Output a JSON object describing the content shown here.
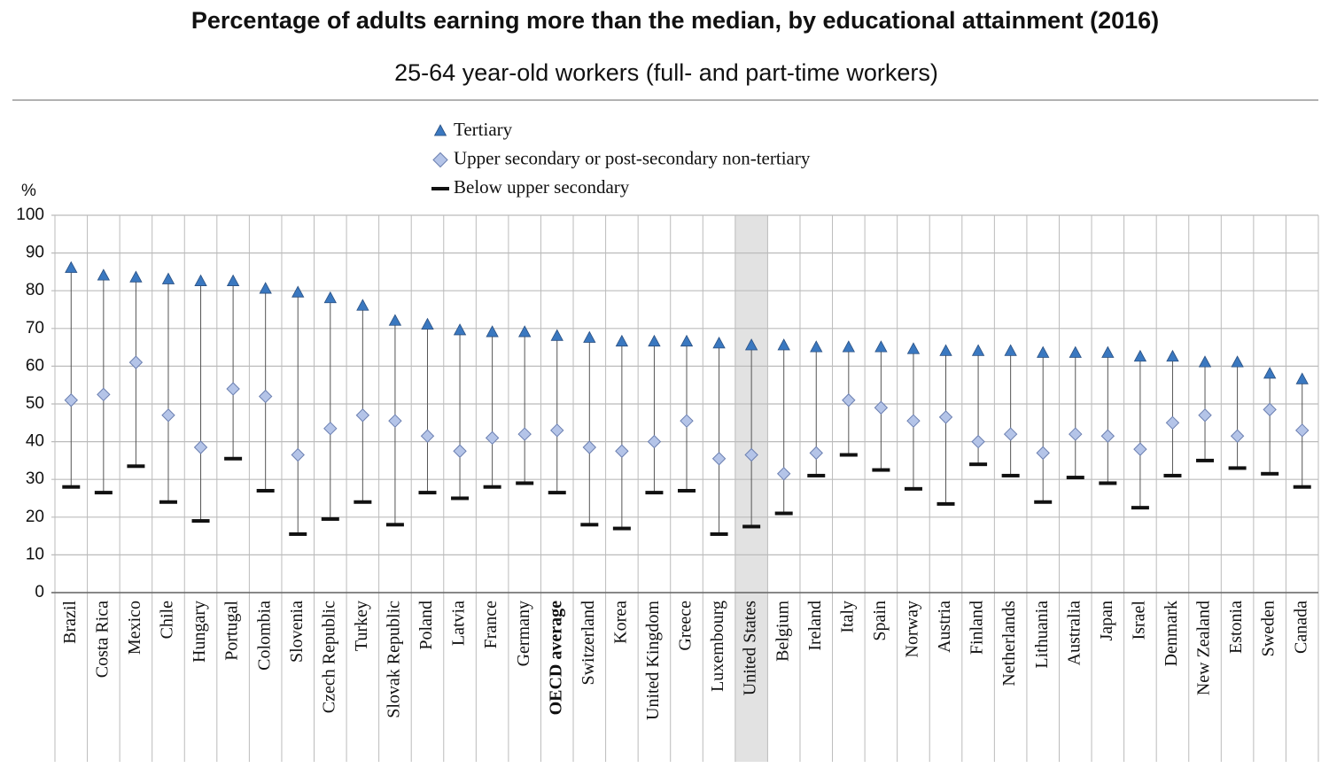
{
  "chart_data": {
    "type": "dot",
    "title": "Percentage of adults earning more than the median, by educational attainment (2016)",
    "subtitle": "25-64 year-old workers (full- and part-time workers)",
    "ylabel": "%",
    "categories": [
      "Brazil",
      "Costa Rica",
      "Mexico",
      "Chile",
      "Hungary",
      "Portugal",
      "Colombia",
      "Slovenia",
      "Czech Republic",
      "Turkey",
      "Slovak Republic",
      "Poland",
      "Latvia",
      "France",
      "Germany",
      "OECD average",
      "Switzerland",
      "Korea",
      "United Kingdom",
      "Greece",
      "Luxembourg",
      "United States",
      "Belgium",
      "Ireland",
      "Italy",
      "Spain",
      "Norway",
      "Austria",
      "Finland",
      "Netherlands",
      "Lithuania",
      "Australia",
      "Japan",
      "Israel",
      "Denmark",
      "New Zealand",
      "Estonia",
      "Sweden",
      "Canada"
    ],
    "series": [
      {
        "name": "Tertiary",
        "color": "#3a78c0",
        "marker": "triangle",
        "values": [
          86,
          84,
          83.5,
          83,
          82.5,
          82.5,
          80.5,
          79.5,
          78,
          76,
          72,
          71,
          69.5,
          69,
          69,
          68,
          67.5,
          66.5,
          66.5,
          66.5,
          66,
          65.5,
          65.5,
          65,
          65,
          65,
          64.5,
          64,
          64,
          64,
          63.5,
          63.5,
          63.5,
          62.5,
          62.5,
          61,
          61,
          58,
          56.5
        ]
      },
      {
        "name": "Upper secondary or post-secondary non-tertiary",
        "color": "#b4c4e8",
        "marker": "diamond",
        "values": [
          51,
          52.5,
          61,
          47,
          38.5,
          54,
          52,
          36.5,
          43.5,
          47,
          45.5,
          41.5,
          37.5,
          41,
          42,
          43,
          38.5,
          37.5,
          40,
          45.5,
          35.5,
          36.5,
          31.5,
          37,
          51,
          49,
          45.5,
          46.5,
          40,
          42,
          37,
          42,
          41.5,
          38,
          45,
          47,
          41.5,
          48.5,
          43
        ]
      },
      {
        "name": "Below upper secondary",
        "color": "#111111",
        "marker": "dash",
        "values": [
          28,
          26.5,
          33.5,
          24,
          19,
          35.5,
          27,
          15.5,
          19.5,
          24,
          18,
          26.5,
          25,
          28,
          29,
          26.5,
          18,
          17,
          26.5,
          27,
          15.5,
          17.5,
          21,
          31,
          36.5,
          32.5,
          27.5,
          23.5,
          34,
          31,
          24,
          30.5,
          29,
          22.5,
          31,
          35,
          33,
          31.5,
          28
        ]
      }
    ],
    "ylim": [
      0,
      100
    ],
    "yticks": [
      0,
      10,
      20,
      30,
      40,
      50,
      60,
      70,
      80,
      90,
      100
    ],
    "grid": true,
    "highlight_index": 21,
    "bold_index": 15,
    "legend": "top"
  }
}
